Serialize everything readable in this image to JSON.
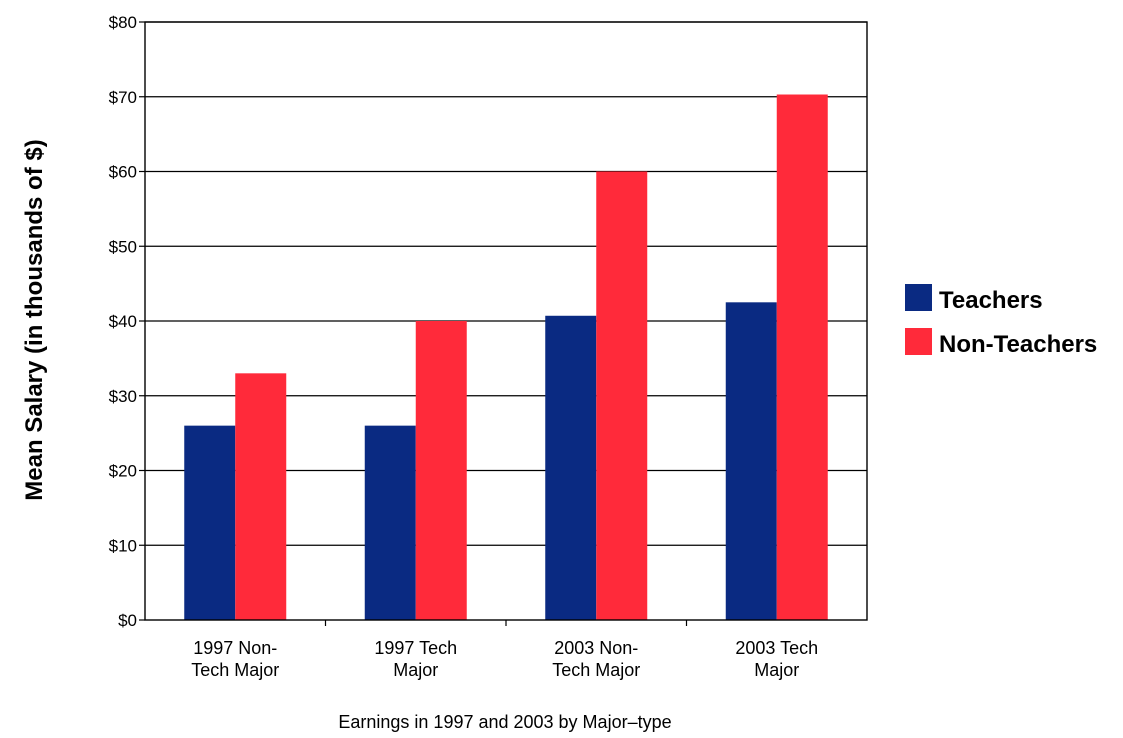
{
  "chart_data": {
    "type": "bar",
    "title": "",
    "xlabel": "Earnings in 1997 and 2003 by Major–type",
    "ylabel": "Mean Salary (in thousands of $)",
    "categories": [
      [
        "1997 Non-",
        "Tech Major"
      ],
      [
        "1997 Tech",
        "Major"
      ],
      [
        "2003 Non-",
        "Tech Major"
      ],
      [
        "2003 Tech",
        "Major"
      ]
    ],
    "series": [
      {
        "name": "Teachers",
        "color": "#0a2a82",
        "values": [
          26,
          26,
          40.7,
          42.5
        ]
      },
      {
        "name": "Non-Teachers",
        "color": "#ff2a3a",
        "values": [
          33,
          40,
          60,
          70.3
        ]
      }
    ],
    "ylim": [
      0,
      80
    ],
    "yticks": [
      0,
      10,
      20,
      30,
      40,
      50,
      60,
      70,
      80
    ],
    "ytick_labels": [
      "$0",
      "$10",
      "$20",
      "$30",
      "$40",
      "$50",
      "$60",
      "$70",
      "$80"
    ],
    "grid": true,
    "legend_position": "right"
  }
}
